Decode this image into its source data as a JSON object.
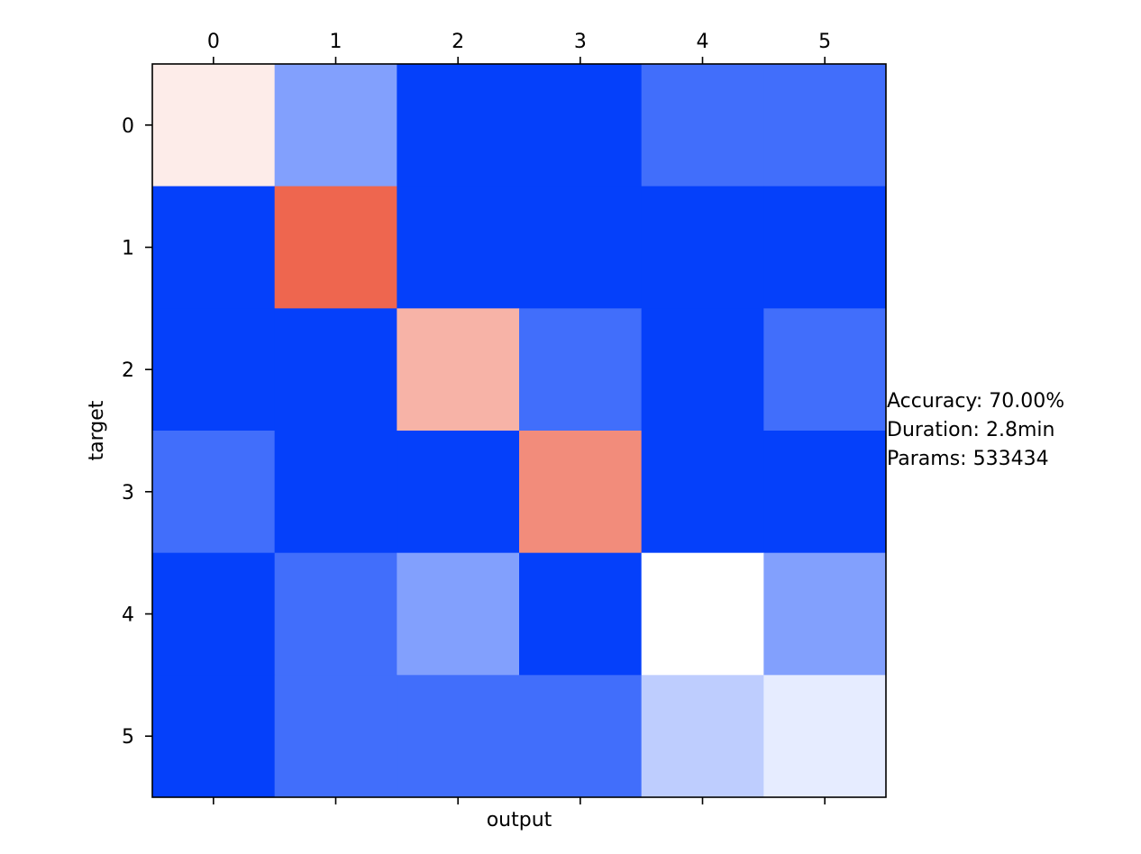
{
  "chart_data": {
    "type": "heatmap",
    "title": "",
    "xlabel": "output",
    "ylabel": "target",
    "x_categories": [
      "0",
      "1",
      "2",
      "3",
      "4",
      "5"
    ],
    "y_categories": [
      "0",
      "1",
      "2",
      "3",
      "4",
      "5"
    ],
    "x_tick_position": "top",
    "grid": false,
    "colorscale": {
      "low": "#0540fa",
      "mid": "#ffffff",
      "high": "#ea4023"
    },
    "values": [
      [
        0.55,
        0.25,
        0.0,
        0.0,
        0.12,
        0.12
      ],
      [
        0.0,
        0.9,
        0.0,
        0.0,
        0.0,
        0.0
      ],
      [
        0.0,
        0.0,
        0.7,
        0.12,
        0.0,
        0.12
      ],
      [
        0.12,
        0.0,
        0.0,
        0.8,
        0.0,
        0.0
      ],
      [
        0.0,
        0.12,
        0.25,
        0.0,
        0.5,
        0.25
      ],
      [
        0.0,
        0.12,
        0.12,
        0.12,
        0.37,
        0.45
      ]
    ],
    "annotations": [
      "Accuracy: 70.00%",
      "Duration: 2.8min",
      "Params: 533434"
    ]
  }
}
